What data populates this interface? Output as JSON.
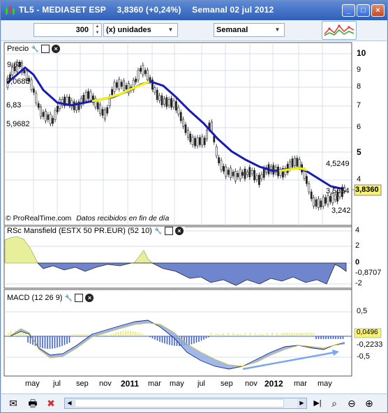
{
  "window": {
    "title": "TL5 - MEDIASET ESP",
    "price": "3,8360 (+0,24%)",
    "period_date": "Semanal  02 jul 2012",
    "buttons": {
      "minimize": "_",
      "maximize": "□",
      "close": "×"
    }
  },
  "toolbar": {
    "units_value": "300",
    "units_label": "(x) unidades",
    "timeframe": "Semanal"
  },
  "price_panel": {
    "label": "Precio",
    "y_ticks": [
      "10",
      "9",
      "8",
      "7",
      "6",
      "5",
      "4"
    ],
    "annotations": [
      "9,63",
      "9,0685",
      "6,83",
      "5,9682",
      "4,5249",
      "3,5654",
      "3,242"
    ],
    "current_price": "3,8360",
    "credit": "© ProRealTime.com",
    "data_note": "Datos recibidos en fin de día"
  },
  "rsc_panel": {
    "label": "RSc Mansfield (ESTX 50 PR.EUR) (52 10)",
    "y_ticks": [
      "4",
      "2",
      "0",
      "-2",
      "-4"
    ],
    "current_value": "-0,8707"
  },
  "macd_panel": {
    "label": "MACD (12 26 9)",
    "y_ticks": [
      "0,5",
      "-0,5"
    ],
    "value_histogram": "0,0496",
    "value_line": "-0,2233"
  },
  "x_axis": {
    "labels": [
      "may",
      "jul",
      "sep",
      "nov",
      "2011",
      "mar",
      "may",
      "jul",
      "sep",
      "nov",
      "2012",
      "mar",
      "may"
    ]
  },
  "colors": {
    "price_ma": "#1a1ab8",
    "ma_highlight": "#f5f500",
    "rsc_area_positive": "#e7ef9a",
    "rsc_area_negative": "#6f86cf",
    "macd_hist_positive": "#e9e96b",
    "macd_hist_negative": "#3f5fd0",
    "macd_fill": "#8aa6e6",
    "trend_arrow": "#7aa6f2",
    "price_badge": "#f7f36a"
  }
}
